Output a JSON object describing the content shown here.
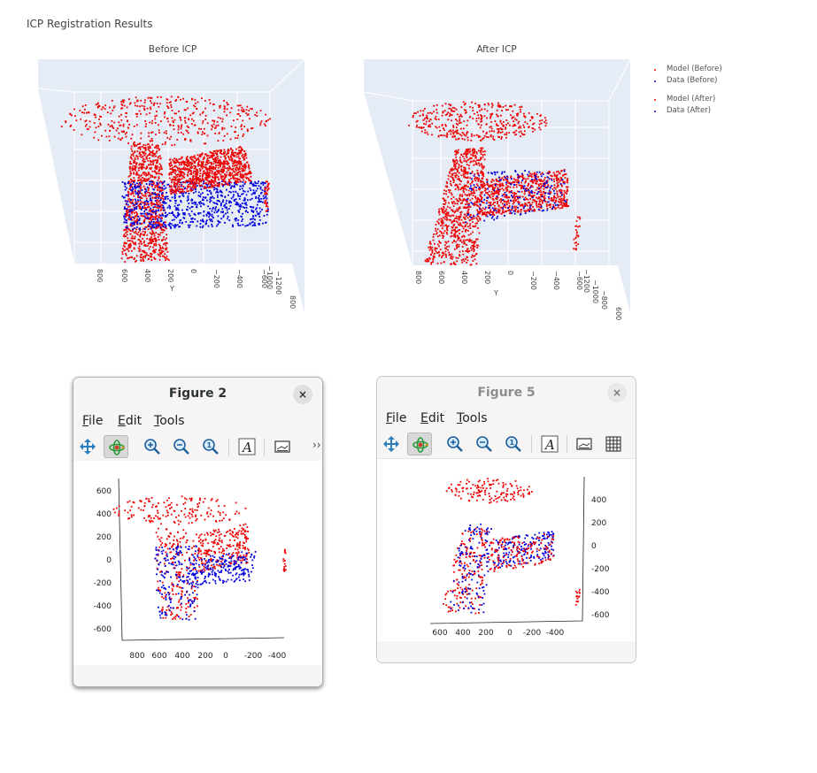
{
  "page": {
    "title": "ICP Registration Results"
  },
  "colors": {
    "model": "#ee0000",
    "data": "#0000dd",
    "scene_bg": "#e5ecf6",
    "grid": "#ffffff"
  },
  "before_panel": {
    "title": "Before ICP",
    "y_axis_label": "Y",
    "y_ticks": [
      "800",
      "600",
      "400",
      "200",
      "0",
      "−200",
      "−400",
      "−600"
    ],
    "z_ticks": [
      "−1000",
      "−1200"
    ],
    "x_ticks": [
      "800"
    ]
  },
  "after_panel": {
    "title": "After ICP",
    "y_axis_label": "Y",
    "y_ticks": [
      "800",
      "600",
      "400",
      "200",
      "0",
      "−200",
      "−400",
      "−600"
    ],
    "z_ticks": [
      "−1200",
      "−1000",
      "−800"
    ],
    "x_ticks": [
      "600"
    ]
  },
  "legend": {
    "items": [
      {
        "label": "Model (Before)",
        "color": "#ee0000"
      },
      {
        "label": "Data (Before)",
        "color": "#0000dd"
      },
      {
        "label": "Model (After)",
        "color": "#ee0000"
      },
      {
        "label": "Data (After)",
        "color": "#0000dd"
      }
    ]
  },
  "figure2": {
    "title": "Figure 2",
    "close": "×",
    "menus": [
      "File",
      "Edit",
      "Tools"
    ],
    "more": "››",
    "toolbar_icons": [
      "move-icon",
      "rotate-icon",
      "zoom-in-icon",
      "zoom-out-icon",
      "zoom-reset-icon",
      "text-icon",
      "image-icon"
    ],
    "y_ticks": [
      "600",
      "400",
      "200",
      "0",
      "-200",
      "-400",
      "-600"
    ],
    "x_ticks": [
      "800",
      "600",
      "400",
      "200",
      "0",
      "-200",
      "-400"
    ]
  },
  "figure5": {
    "title": "Figure 5",
    "close": "×",
    "menus": [
      "File",
      "Edit",
      "Tools"
    ],
    "toolbar_icons": [
      "move-icon",
      "rotate-icon",
      "zoom-in-icon",
      "zoom-out-icon",
      "zoom-reset-icon",
      "text-icon",
      "image-icon",
      "grid-icon"
    ],
    "y_ticks": [
      "400",
      "200",
      "0",
      "-200",
      "-400",
      "-600"
    ],
    "x_ticks": [
      "600",
      "400",
      "200",
      "0",
      "-200",
      "-400"
    ]
  }
}
